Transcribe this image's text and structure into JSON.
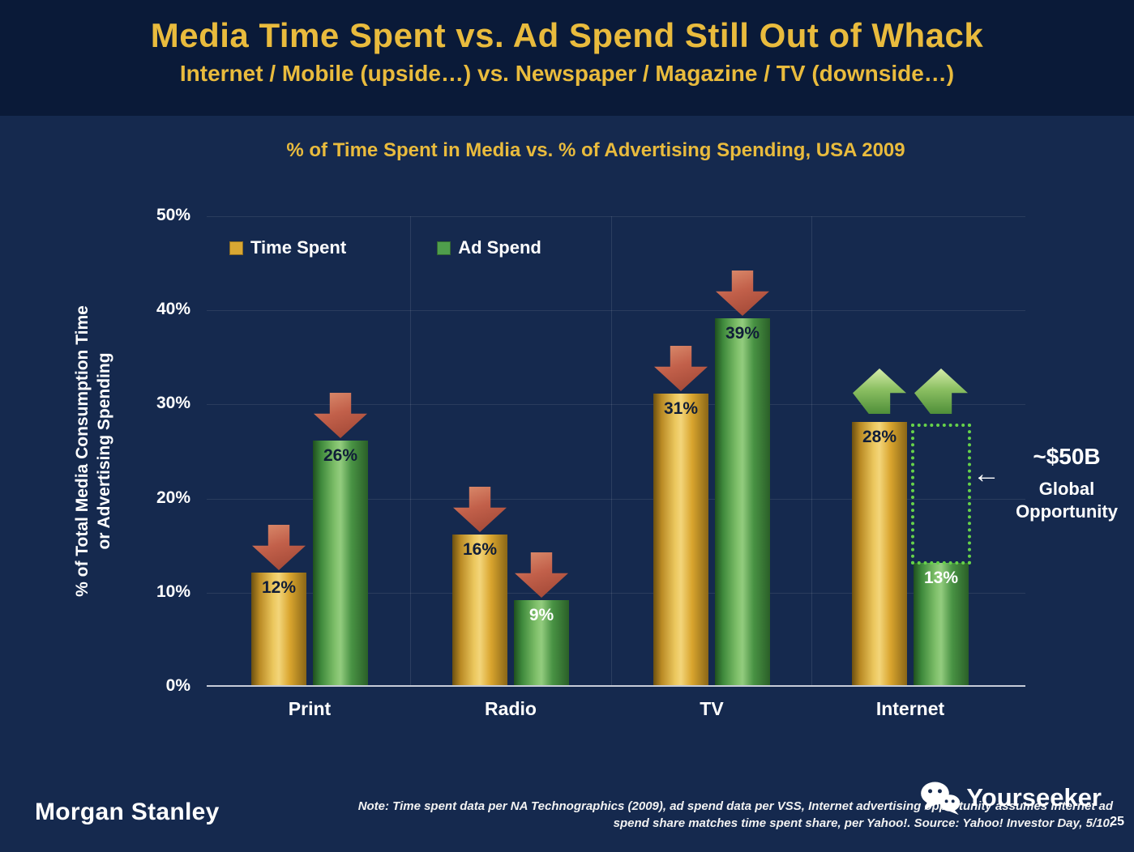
{
  "slide": {
    "title": "Media Time Spent vs. Ad Spend Still Out of Whack",
    "subtitle": "Internet / Mobile (upside…) vs. Newspaper / Magazine / TV (downside…)",
    "page_number": "25"
  },
  "chart_data": {
    "type": "bar",
    "title": "% of Time Spent in Media vs. % of Advertising Spending, USA 2009",
    "ylabel": "% of Total Media Consumption Time or Advertising Spending",
    "ylabel_lines": [
      "% of Total Media Consumption Time",
      "or Advertising Spending"
    ],
    "categories": [
      "Print",
      "Radio",
      "TV",
      "Internet"
    ],
    "series": [
      {
        "name": "Time Spent",
        "color": "#D9A733",
        "values": [
          12,
          16,
          31,
          28
        ],
        "labels": [
          "12%",
          "16%",
          "31%",
          "28%"
        ],
        "label_colors": [
          "#101d38",
          "#101d38",
          "#101d38",
          "#101d38"
        ]
      },
      {
        "name": "Ad Spend",
        "color": "#4F9E4C",
        "values": [
          26,
          9,
          39,
          13
        ],
        "labels": [
          "26%",
          "9%",
          "39%",
          "13%"
        ],
        "label_colors": [
          "#101d38",
          "#ffffff",
          "#101d38",
          "#ffffff"
        ]
      }
    ],
    "ylim": [
      0,
      50
    ],
    "yticks": [
      "0%",
      "10%",
      "20%",
      "30%",
      "40%",
      "50%"
    ],
    "trend_arrows": [
      "down",
      "down",
      "down",
      "up"
    ],
    "legend_position": "top-left",
    "grid": "subtle"
  },
  "annotation": {
    "value": "~$50B",
    "label_line1": "Global",
    "label_line2": "Opportunity",
    "arrow": "←"
  },
  "footer": {
    "brand": "Morgan Stanley",
    "note_line1": "Note: Time spent data per NA Technographics (2009), ad spend data per VSS, Internet advertising opportunity assumes Internet ad",
    "note_line2": "spend share matches time spent share, per Yahoo!. Source: Yahoo! Investor Day, 5/10.",
    "watermark": "Yourseeker"
  },
  "colors": {
    "header_background": "#0a1a38",
    "body_background": "#15294e",
    "title_gold": "#e9bb3d",
    "bar_gold": "#D9A733",
    "bar_green": "#4F9E4C",
    "arrow_down_red": "#c2604a",
    "arrow_up_green": "#8cc063",
    "opportunity_box_green": "#66d24a"
  }
}
